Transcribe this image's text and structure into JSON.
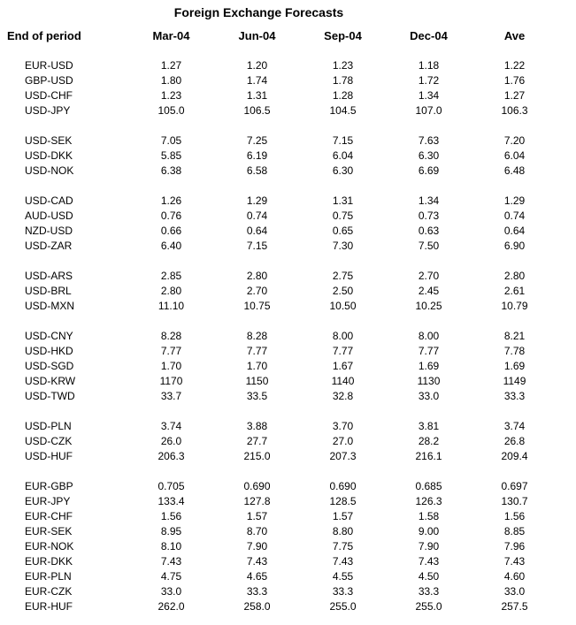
{
  "title": "Foreign Exchange Forecasts",
  "colors": {
    "text": "#000000",
    "background": "#ffffff"
  },
  "table": {
    "columns": [
      "End of period",
      "Mar-04",
      "Jun-04",
      "Sep-04",
      "Dec-04",
      "Ave"
    ],
    "groups": [
      {
        "rows": [
          {
            "pair": "EUR-USD",
            "values": [
              "1.27",
              "1.20",
              "1.23",
              "1.18",
              "1.22"
            ]
          },
          {
            "pair": "GBP-USD",
            "values": [
              "1.80",
              "1.74",
              "1.78",
              "1.72",
              "1.76"
            ]
          },
          {
            "pair": "USD-CHF",
            "values": [
              "1.23",
              "1.31",
              "1.28",
              "1.34",
              "1.27"
            ]
          },
          {
            "pair": "USD-JPY",
            "values": [
              "105.0",
              "106.5",
              "104.5",
              "107.0",
              "106.3"
            ]
          }
        ]
      },
      {
        "rows": [
          {
            "pair": "USD-SEK",
            "values": [
              "7.05",
              "7.25",
              "7.15",
              "7.63",
              "7.20"
            ]
          },
          {
            "pair": "USD-DKK",
            "values": [
              "5.85",
              "6.19",
              "6.04",
              "6.30",
              "6.04"
            ]
          },
          {
            "pair": "USD-NOK",
            "values": [
              "6.38",
              "6.58",
              "6.30",
              "6.69",
              "6.48"
            ]
          }
        ]
      },
      {
        "rows": [
          {
            "pair": "USD-CAD",
            "values": [
              "1.26",
              "1.29",
              "1.31",
              "1.34",
              "1.29"
            ]
          },
          {
            "pair": "AUD-USD",
            "values": [
              "0.76",
              "0.74",
              "0.75",
              "0.73",
              "0.74"
            ]
          },
          {
            "pair": "NZD-USD",
            "values": [
              "0.66",
              "0.64",
              "0.65",
              "0.63",
              "0.64"
            ]
          },
          {
            "pair": "USD-ZAR",
            "values": [
              "6.40",
              "7.15",
              "7.30",
              "7.50",
              "6.90"
            ]
          }
        ]
      },
      {
        "rows": [
          {
            "pair": "USD-ARS",
            "values": [
              "2.85",
              "2.80",
              "2.75",
              "2.70",
              "2.80"
            ]
          },
          {
            "pair": "USD-BRL",
            "values": [
              "2.80",
              "2.70",
              "2.50",
              "2.45",
              "2.61"
            ]
          },
          {
            "pair": "USD-MXN",
            "values": [
              "11.10",
              "10.75",
              "10.50",
              "10.25",
              "10.79"
            ]
          }
        ]
      },
      {
        "rows": [
          {
            "pair": "USD-CNY",
            "values": [
              "8.28",
              "8.28",
              "8.00",
              "8.00",
              "8.21"
            ]
          },
          {
            "pair": "USD-HKD",
            "values": [
              "7.77",
              "7.77",
              "7.77",
              "7.77",
              "7.78"
            ]
          },
          {
            "pair": "USD-SGD",
            "values": [
              "1.70",
              "1.70",
              "1.67",
              "1.69",
              "1.69"
            ]
          },
          {
            "pair": "USD-KRW",
            "values": [
              "1170",
              "1150",
              "1140",
              "1130",
              "1149"
            ]
          },
          {
            "pair": "USD-TWD",
            "values": [
              "33.7",
              "33.5",
              "32.8",
              "33.0",
              "33.3"
            ]
          }
        ]
      },
      {
        "rows": [
          {
            "pair": "USD-PLN",
            "values": [
              "3.74",
              "3.88",
              "3.70",
              "3.81",
              "3.74"
            ]
          },
          {
            "pair": "USD-CZK",
            "values": [
              "26.0",
              "27.7",
              "27.0",
              "28.2",
              "26.8"
            ]
          },
          {
            "pair": "USD-HUF",
            "values": [
              "206.3",
              "215.0",
              "207.3",
              "216.1",
              "209.4"
            ]
          }
        ]
      },
      {
        "rows": [
          {
            "pair": "EUR-GBP",
            "values": [
              "0.705",
              "0.690",
              "0.690",
              "0.685",
              "0.697"
            ]
          },
          {
            "pair": "EUR-JPY",
            "values": [
              "133.4",
              "127.8",
              "128.5",
              "126.3",
              "130.7"
            ]
          },
          {
            "pair": "EUR-CHF",
            "values": [
              "1.56",
              "1.57",
              "1.57",
              "1.58",
              "1.56"
            ]
          },
          {
            "pair": "EUR-SEK",
            "values": [
              "8.95",
              "8.70",
              "8.80",
              "9.00",
              "8.85"
            ]
          },
          {
            "pair": "EUR-NOK",
            "values": [
              "8.10",
              "7.90",
              "7.75",
              "7.90",
              "7.96"
            ]
          },
          {
            "pair": "EUR-DKK",
            "values": [
              "7.43",
              "7.43",
              "7.43",
              "7.43",
              "7.43"
            ]
          },
          {
            "pair": "EUR-PLN",
            "values": [
              "4.75",
              "4.65",
              "4.55",
              "4.50",
              "4.60"
            ]
          },
          {
            "pair": "EUR-CZK",
            "values": [
              "33.0",
              "33.3",
              "33.3",
              "33.3",
              "33.0"
            ]
          },
          {
            "pair": "EUR-HUF",
            "values": [
              "262.0",
              "258.0",
              "255.0",
              "255.0",
              "257.5"
            ]
          }
        ]
      }
    ]
  }
}
